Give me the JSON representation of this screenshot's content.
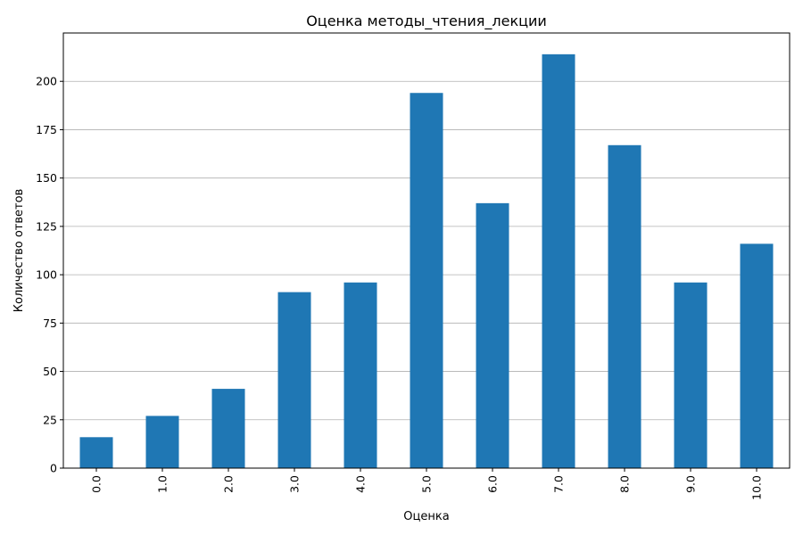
{
  "chart_data": {
    "type": "bar",
    "title": "Оценка методы_чтения_лекции",
    "xlabel": "Оценка",
    "ylabel": "Количество ответов",
    "categories": [
      "0.0",
      "1.0",
      "2.0",
      "3.0",
      "4.0",
      "5.0",
      "6.0",
      "7.0",
      "8.0",
      "9.0",
      "10.0"
    ],
    "values": [
      16,
      27,
      41,
      91,
      96,
      194,
      137,
      214,
      167,
      96,
      116
    ],
    "ylim": [
      0,
      225
    ],
    "yticks": [
      0,
      25,
      50,
      75,
      100,
      125,
      150,
      175,
      200
    ],
    "grid": "y",
    "bar_color": "#1f77b4"
  }
}
